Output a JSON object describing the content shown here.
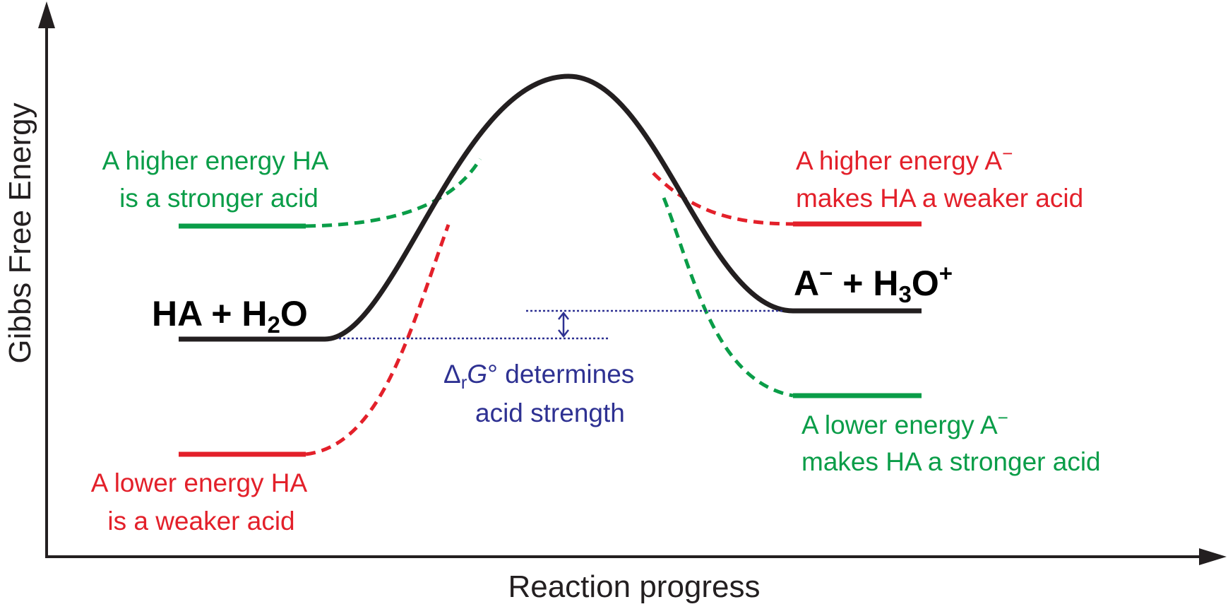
{
  "axes": {
    "y_label": "Gibbs Free Energy",
    "x_label": "Reaction progress"
  },
  "species": {
    "reactant": {
      "base": "HA + H",
      "sub": "2",
      "tail": "O"
    },
    "product": {
      "a": "A",
      "a_sup": "−",
      "mid": " + H",
      "sub": "3",
      "tail": "O",
      "tail_sup": "+"
    }
  },
  "annotations": {
    "higher_ha": {
      "line1": "A higher energy HA",
      "line2": "is a stronger acid",
      "color": "#0a9d48"
    },
    "lower_ha": {
      "line1": "A lower energy HA",
      "line2": "is a weaker acid",
      "color": "#e3202a"
    },
    "higher_a": {
      "line1_text": "A higher energy A",
      "line1_sup": "−",
      "line2": "makes HA a weaker acid",
      "color": "#e3202a"
    },
    "lower_a": {
      "line1_text": "A lower energy A",
      "line1_sup": "−",
      "line2": "makes HA a stronger acid",
      "color": "#0a9d48"
    },
    "delta_g": {
      "delta": "Δ",
      "sub": "r",
      "g": "G",
      "rest": "° determines",
      "line2": "acid strength",
      "color": "#2e3192"
    }
  },
  "colors": {
    "main_curve": "#231f20",
    "green": "#0a9d48",
    "red": "#e3202a",
    "blue": "#2e3192"
  }
}
